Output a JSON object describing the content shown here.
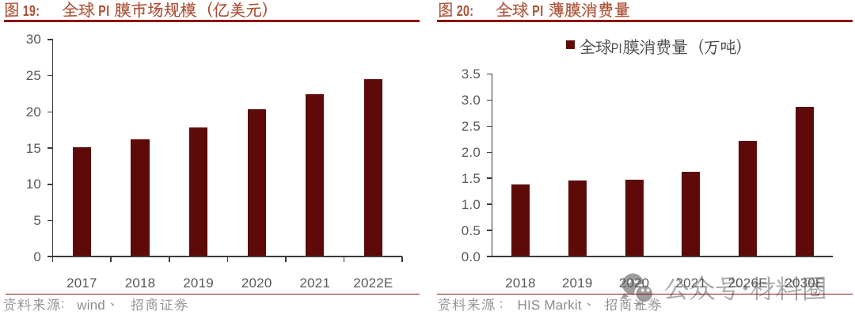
{
  "page": {
    "background": "#ffffff",
    "kind": "research-report-figures"
  },
  "colors": {
    "bar": "#5D0A08",
    "title": "#AD5136",
    "rule": "#8A1511",
    "axis": "#3B3B3B",
    "tick_label": "#56585B",
    "legend_text": "#474747",
    "source_text": "#8A8A8A",
    "watermark": "#A9A9A9"
  },
  "chart_data": [
    {
      "type": "bar",
      "title": "图 19：全球 PI 膜市场规模（亿美元）",
      "categories": [
        "2017",
        "2018",
        "2019",
        "2020",
        "2021",
        "2022E"
      ],
      "values": [
        15.1,
        16.2,
        17.9,
        20.4,
        22.4,
        24.5
      ],
      "ylim": [
        0,
        30
      ],
      "ytick_step": 5,
      "yticklabels": [
        "0",
        "5",
        "10",
        "15",
        "20",
        "25",
        "30"
      ],
      "legend": null,
      "grid": false,
      "source": "资料来源：wind、招商证券"
    },
    {
      "type": "bar",
      "title": "图 20：全球 PI 薄膜消费量",
      "categories": [
        "2018",
        "2019",
        "2020",
        "2021",
        "2026E",
        "2030E"
      ],
      "values": [
        1.39,
        1.46,
        1.48,
        1.63,
        2.21,
        2.87
      ],
      "ylim": [
        0,
        3.5
      ],
      "ytick_step": 0.5,
      "yticklabels": [
        "0.0",
        "0.5",
        "1.0",
        "1.5",
        "2.0",
        "2.5",
        "3.0",
        "3.5"
      ],
      "legend": "全球PI膜消费量（万吨）",
      "grid": false,
      "source": "资料来源：HIS Markit、招商证券"
    }
  ],
  "watermark": {
    "icon": "wechat-logo",
    "text": "公众号·材料圈"
  }
}
